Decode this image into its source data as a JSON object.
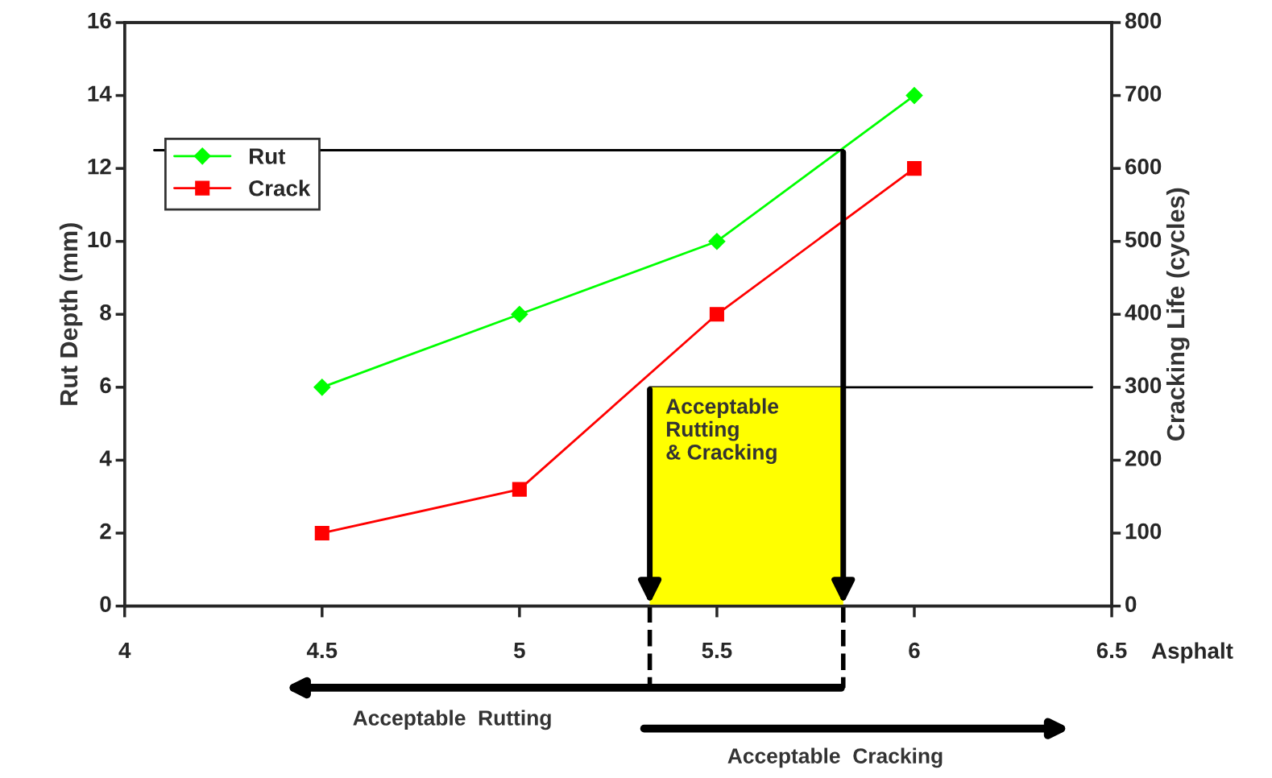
{
  "chart_data": {
    "type": "line",
    "xlabel": "Asphalt",
    "ylabel": "Rut Depth (mm)",
    "y2label": "Cracking Life (cycles)",
    "x": [
      4.5,
      5,
      5.5,
      6
    ],
    "series": [
      {
        "name": "Rut",
        "color": "#00ff00",
        "values": [
          6,
          8,
          10,
          14
        ],
        "marker": "diamond"
      },
      {
        "name": "Crack",
        "color": "#ff0000",
        "values": [
          100,
          160,
          400,
          600
        ],
        "marker": "square",
        "axis": "y2"
      }
    ],
    "xlim": [
      4,
      6.5
    ],
    "xticks": [
      4,
      4.5,
      5,
      5.5,
      6,
      6.5
    ],
    "ylim": [
      0,
      16
    ],
    "yticks": [
      0,
      2,
      4,
      6,
      8,
      10,
      12,
      14,
      16
    ],
    "y2lim": [
      0,
      800
    ],
    "y2ticks": [
      0,
      100,
      200,
      300,
      400,
      500,
      600,
      700,
      800
    ],
    "ref_lines": [
      {
        "axis": "y",
        "value": 12.5,
        "color": "#000000"
      },
      {
        "axis": "y2",
        "value": 300,
        "color": "#000000"
      }
    ],
    "bands": [
      {
        "axis": "x",
        "from": 5.33,
        "to": 5.82,
        "label": "Acceptable\nRutting\n& Cracking",
        "color": "#ffff00"
      }
    ],
    "annotations": [
      "Acceptable  Rutting",
      "Acceptable  Cracking"
    ],
    "legend": "top left",
    "grid": false,
    "line_style": "solid"
  }
}
